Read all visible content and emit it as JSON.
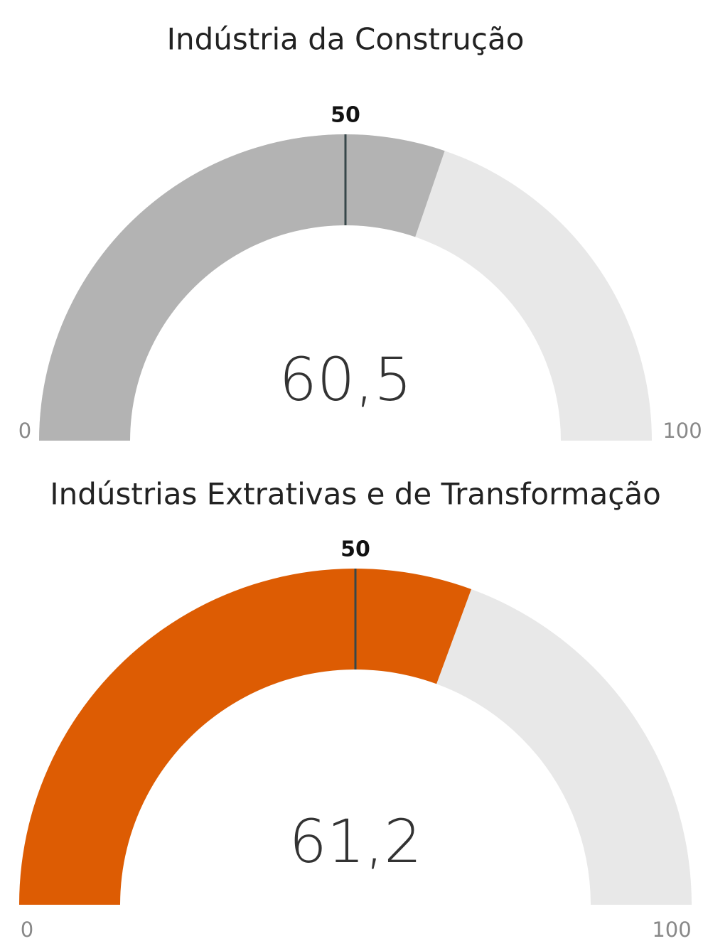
{
  "chart_data": [
    {
      "type": "gauge",
      "title": "Indústria da Construção",
      "values": [
        60.5
      ],
      "value_labels": [
        "60,5"
      ],
      "target": 50,
      "ylim": [
        0,
        100
      ],
      "color": "#b3b3b3",
      "track_color": "#e8e8e8",
      "target_color": "#37474a"
    },
    {
      "type": "gauge",
      "title": "Indústrias Extrativas e de Transformação",
      "values": [
        61.2
      ],
      "value_labels": [
        "61,2"
      ],
      "target": 50,
      "ylim": [
        0,
        100
      ],
      "color": "#dd5c03",
      "track_color": "#e8e8e8",
      "target_color": "#37474a"
    }
  ]
}
